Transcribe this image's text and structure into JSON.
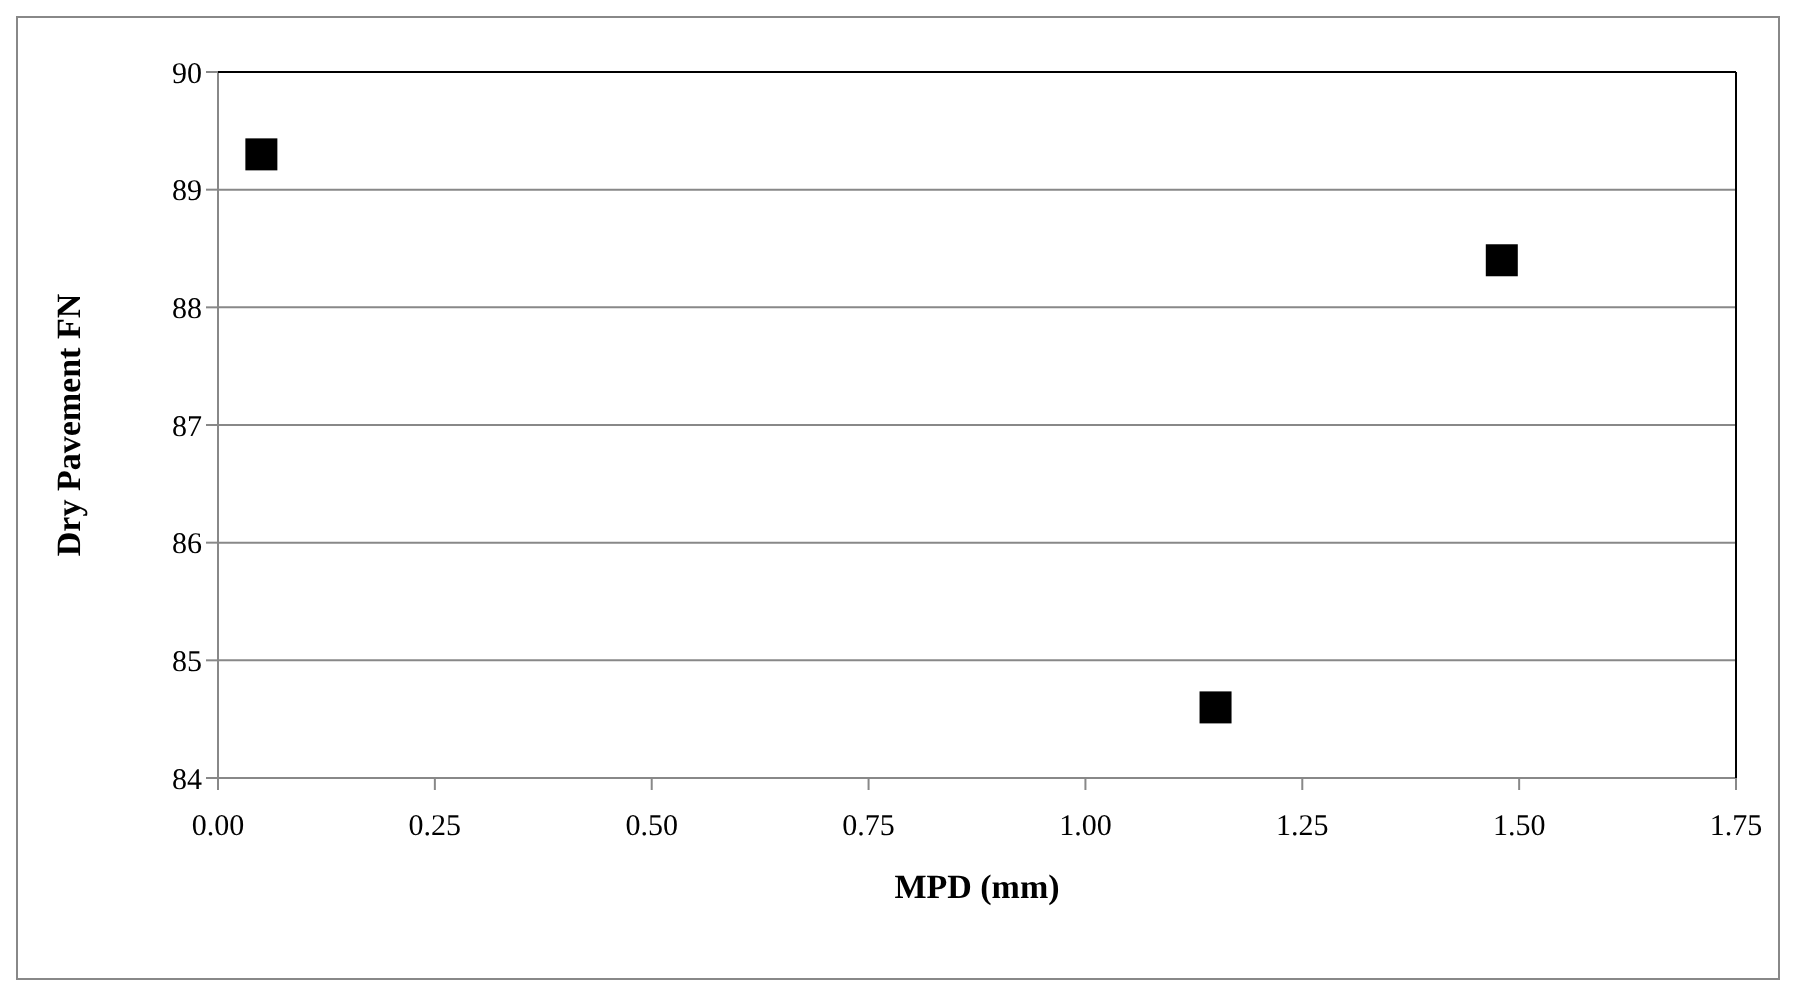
{
  "chart_data": {
    "type": "scatter",
    "xlabel": "MPD (mm)",
    "ylabel": "Dry Pavement FN",
    "x": [
      0.05,
      1.15,
      1.48
    ],
    "series": [
      {
        "color": "#000000",
        "values": [
          89.3,
          84.6,
          88.4
        ]
      }
    ],
    "xlim": [
      0,
      1.75
    ],
    "xticks": [
      {
        "value": 0,
        "label": "0.00"
      },
      {
        "value": 0.25,
        "label": "0.25"
      },
      {
        "value": 0.5,
        "label": "0.50"
      },
      {
        "value": 0.75,
        "label": "0.75"
      },
      {
        "value": 1,
        "label": "1.00"
      },
      {
        "value": 1.25,
        "label": "1.25"
      },
      {
        "value": 1.5,
        "label": "1.50"
      },
      {
        "value": 1.75,
        "label": "1.75"
      }
    ],
    "ylim": [
      84,
      90
    ],
    "yticks": [
      84,
      85,
      86,
      87,
      88,
      89,
      90
    ],
    "grid": "y",
    "legend": false,
    "marker": "square"
  }
}
